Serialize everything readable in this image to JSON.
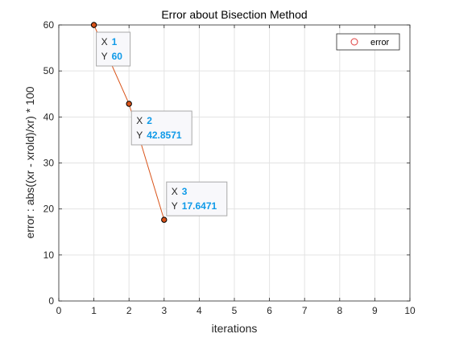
{
  "chart_data": {
    "type": "line",
    "title": "Error about Bisection Method",
    "xlabel": "iterations",
    "ylabel": "error : abs((xr - xrold)/xr) * 100",
    "xlim": [
      0,
      10
    ],
    "ylim": [
      0,
      60
    ],
    "xticks": [
      0,
      1,
      2,
      3,
      4,
      5,
      6,
      7,
      8,
      9,
      10
    ],
    "yticks": [
      0,
      10,
      20,
      30,
      40,
      50,
      60
    ],
    "grid": true,
    "legend_position": "top-right",
    "series": [
      {
        "name": "error",
        "x": [
          1,
          2,
          3
        ],
        "y": [
          60,
          42.8571,
          17.6471
        ],
        "line_color": "#d95319",
        "marker": "circle"
      }
    ],
    "datatips": [
      {
        "x_key": "X",
        "x_value": "1",
        "y_key": "Y",
        "y_value": "60"
      },
      {
        "x_key": "X",
        "x_value": "2",
        "y_key": "Y",
        "y_value": "42.8571"
      },
      {
        "x_key": "X",
        "x_value": "3",
        "y_key": "Y",
        "y_value": "17.6471"
      }
    ]
  },
  "colors": {
    "legend_marker": "#e03c3c",
    "datatip_value": "#0f9ae8",
    "grid": "#e3e3e3",
    "axis": "#262626"
  }
}
